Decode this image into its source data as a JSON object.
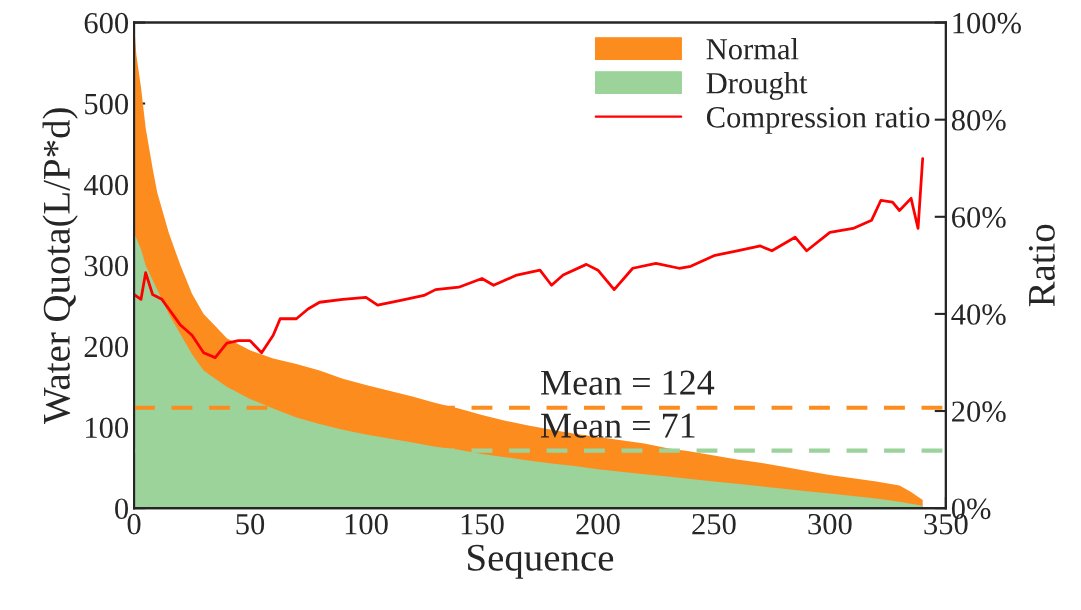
{
  "chart_data": {
    "type": "area",
    "xlabel": "Sequence",
    "ylabel": "Water Quota(L/P*d)",
    "y2label": "Ratio",
    "xlim": [
      0,
      350
    ],
    "xticks": [
      0,
      50,
      100,
      150,
      200,
      250,
      300,
      350
    ],
    "ylim": [
      0,
      600
    ],
    "yticks": [
      0,
      100,
      200,
      300,
      400,
      500,
      600
    ],
    "y2lim": [
      0,
      100
    ],
    "y2ticks": [
      {
        "value": 0,
        "label": "0%"
      },
      {
        "value": 20,
        "label": "20%"
      },
      {
        "value": 40,
        "label": "40%"
      },
      {
        "value": 60,
        "label": "60%"
      },
      {
        "value": 80,
        "label": "80%"
      },
      {
        "value": 100,
        "label": "100%"
      }
    ],
    "grid": false,
    "legend": "top right",
    "series": [
      {
        "name": "Normal",
        "color": "#fd8c1e",
        "x": [
          0,
          1,
          3,
          5,
          8,
          10,
          15,
          20,
          25,
          30,
          35,
          40,
          50,
          60,
          70,
          80,
          90,
          100,
          110,
          120,
          130,
          140,
          150,
          160,
          170,
          180,
          190,
          200,
          210,
          220,
          230,
          240,
          250,
          260,
          270,
          280,
          290,
          300,
          310,
          320,
          330,
          335,
          340
        ],
        "values": [
          600,
          560,
          520,
          470,
          420,
          390,
          340,
          300,
          265,
          240,
          225,
          210,
          195,
          185,
          178,
          170,
          160,
          152,
          145,
          138,
          130,
          123,
          115,
          108,
          102,
          97,
          92,
          88,
          84,
          80,
          74,
          70,
          65,
          60,
          56,
          51,
          46,
          41,
          37,
          33,
          28,
          20,
          10
        ]
      },
      {
        "name": "Drought",
        "color": "#9bd39b",
        "x": [
          0,
          3,
          5,
          10,
          15,
          20,
          25,
          30,
          35,
          40,
          50,
          60,
          70,
          80,
          90,
          100,
          110,
          120,
          130,
          140,
          150,
          160,
          170,
          180,
          190,
          200,
          210,
          220,
          230,
          240,
          250,
          260,
          270,
          280,
          290,
          300,
          310,
          320,
          330,
          340
        ],
        "values": [
          340,
          320,
          300,
          270,
          240,
          215,
          190,
          170,
          160,
          150,
          135,
          123,
          112,
          104,
          97,
          91,
          86,
          81,
          76,
          72,
          67,
          63,
          59,
          55,
          52,
          48,
          45,
          42,
          39,
          36,
          33,
          30,
          27,
          24,
          21,
          18,
          15,
          12,
          8,
          3
        ]
      },
      {
        "name": "Compression ratio",
        "type": "line",
        "axis": "y2",
        "color": "#ff0000",
        "x": [
          0,
          3,
          5,
          8,
          12,
          15,
          20,
          25,
          30,
          35,
          40,
          45,
          50,
          55,
          60,
          63,
          70,
          75,
          80,
          90,
          100,
          105,
          115,
          125,
          130,
          140,
          150,
          155,
          165,
          175,
          180,
          185,
          195,
          200,
          207,
          215,
          225,
          235,
          240,
          250,
          260,
          270,
          275,
          285,
          290,
          300,
          310,
          318,
          322,
          327,
          330,
          335,
          338,
          340
        ],
        "values": [
          44,
          43,
          48.5,
          44,
          43,
          41,
          37.7,
          35.6,
          32,
          31,
          34,
          34.5,
          34.5,
          32,
          35.6,
          39,
          39,
          41,
          42.4,
          43,
          43.4,
          41.8,
          42.8,
          43.8,
          45,
          45.5,
          47.3,
          45.9,
          48,
          49,
          45.9,
          48,
          50.2,
          49,
          45,
          49.4,
          50.4,
          49.4,
          49.8,
          52,
          53,
          54,
          53,
          55.8,
          53,
          56.8,
          57.6,
          59.3,
          63.4,
          63,
          61.3,
          63.8,
          57.6,
          72
        ]
      }
    ],
    "ref_lines": [
      {
        "axis": "y",
        "value": 124,
        "label": "Mean = 124",
        "color": "#fd8c1e",
        "line_style": "dashed"
      },
      {
        "axis": "y",
        "value": 71,
        "label": "Mean = 71",
        "color": "#9bd39b",
        "line_style": "dashed"
      }
    ]
  }
}
